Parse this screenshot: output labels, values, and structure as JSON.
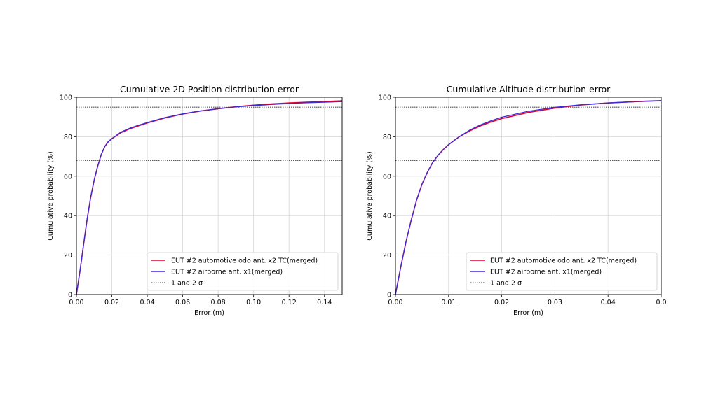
{
  "chart_data": [
    {
      "type": "line",
      "title": "Cumulative 2D Position distribution error",
      "xlabel": "Error (m)",
      "ylabel": "Cumulative probability (%)",
      "xlim": [
        0,
        0.15
      ],
      "ylim": [
        0,
        100
      ],
      "xticks": [
        "0.00",
        "0.02",
        "0.04",
        "0.06",
        "0.08",
        "0.10",
        "0.12",
        "0.14"
      ],
      "yticks": [
        "0",
        "20",
        "40",
        "60",
        "80",
        "100"
      ],
      "grid": true,
      "legend_position": "bottom-right",
      "sigma_lines": [
        68,
        95
      ],
      "series": [
        {
          "name": "EUT #2 automotive odo ant. x2 TC(merged)",
          "color": "#e3002c",
          "style": "solid",
          "x": [
            0,
            0.002,
            0.004,
            0.006,
            0.008,
            0.01,
            0.012,
            0.014,
            0.016,
            0.018,
            0.02,
            0.025,
            0.03,
            0.035,
            0.04,
            0.05,
            0.06,
            0.07,
            0.08,
            0.09,
            0.1,
            0.11,
            0.12,
            0.13,
            0.14,
            0.15
          ],
          "y": [
            0,
            12,
            25,
            38,
            49,
            58,
            65,
            71,
            75,
            77.5,
            79,
            82,
            84,
            85.5,
            87,
            89.5,
            91.5,
            93,
            94.2,
            95.2,
            96,
            96.6,
            97.1,
            97.5,
            97.8,
            98.2
          ]
        },
        {
          "name": "EUT #2 airborne ant. x1(merged)",
          "color": "#3a2ad8",
          "style": "solid",
          "x": [
            0,
            0.002,
            0.004,
            0.006,
            0.008,
            0.01,
            0.012,
            0.014,
            0.016,
            0.018,
            0.02,
            0.025,
            0.03,
            0.035,
            0.04,
            0.05,
            0.06,
            0.07,
            0.08,
            0.09,
            0.1,
            0.11,
            0.12,
            0.13,
            0.14,
            0.15
          ],
          "y": [
            0,
            12,
            25,
            38,
            49,
            58,
            65,
            71,
            75,
            77.5,
            79,
            82.3,
            84.3,
            85.8,
            87.2,
            89.7,
            91.6,
            93.1,
            94.2,
            95.1,
            95.8,
            96.3,
            96.8,
            97.2,
            97.5,
            97.8
          ]
        },
        {
          "name": "1 and 2 σ",
          "color": "#000000",
          "style": "dotted"
        }
      ]
    },
    {
      "type": "line",
      "title": "Cumulative Altitude distribution error",
      "xlabel": "Error (m)",
      "ylabel": "Cumulative probability (%)",
      "xlim": [
        0,
        0.05
      ],
      "ylim": [
        0,
        100
      ],
      "xticks": [
        "0.00",
        "0.01",
        "0.02",
        "0.03",
        "0.04",
        "0.0"
      ],
      "yticks": [
        "0",
        "20",
        "40",
        "60",
        "80",
        "100"
      ],
      "grid": true,
      "legend_position": "bottom-right",
      "sigma_lines": [
        68,
        95
      ],
      "series": [
        {
          "name": "EUT #2 automotive odo ant. x2 TC(merged)",
          "color": "#e3002c",
          "style": "solid",
          "x": [
            0,
            0.001,
            0.002,
            0.003,
            0.004,
            0.005,
            0.006,
            0.007,
            0.008,
            0.009,
            0.01,
            0.012,
            0.014,
            0.016,
            0.018,
            0.02,
            0.025,
            0.03,
            0.035,
            0.04,
            0.045,
            0.05
          ],
          "y": [
            0,
            14,
            27,
            38,
            48,
            56,
            62,
            67,
            70.5,
            73.5,
            76,
            80,
            83,
            85.5,
            87.5,
            89.2,
            92.3,
            94.5,
            96.1,
            97.1,
            97.8,
            98.3
          ]
        },
        {
          "name": "EUT #2 airborne ant. x1(merged)",
          "color": "#3a2ad8",
          "style": "solid",
          "x": [
            0,
            0.001,
            0.002,
            0.003,
            0.004,
            0.005,
            0.006,
            0.007,
            0.008,
            0.009,
            0.01,
            0.012,
            0.014,
            0.016,
            0.018,
            0.02,
            0.025,
            0.03,
            0.035,
            0.04,
            0.045,
            0.05
          ],
          "y": [
            0,
            14,
            27,
            38,
            48,
            56,
            62,
            67,
            70.5,
            73.5,
            76,
            80,
            83.4,
            86,
            88.1,
            89.9,
            92.9,
            94.9,
            96.2,
            97.1,
            97.7,
            98.2
          ]
        },
        {
          "name": "1 and 2 σ",
          "color": "#000000",
          "style": "dotted"
        }
      ]
    }
  ]
}
